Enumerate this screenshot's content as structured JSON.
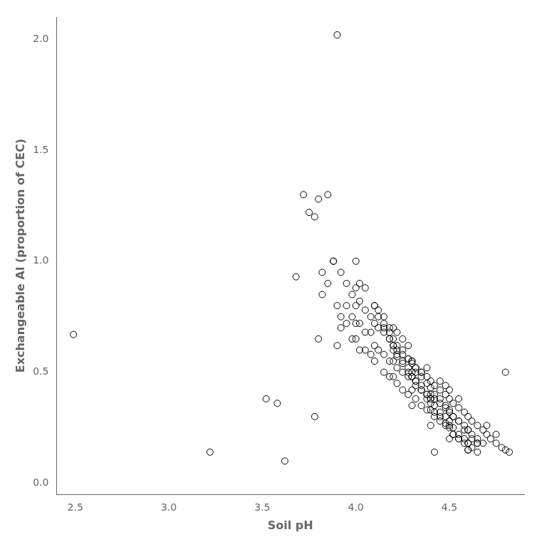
{
  "chart_data": {
    "type": "scatter",
    "x": [
      2.49,
      3.22,
      3.52,
      3.58,
      3.62,
      3.68,
      3.72,
      3.78,
      3.8,
      3.82,
      3.85,
      3.88,
      3.9,
      3.92,
      3.95,
      3.98,
      4.0,
      4.02,
      4.05,
      4.1,
      4.12,
      4.15,
      4.18,
      4.2,
      4.22,
      4.25,
      4.28,
      4.3,
      4.32,
      4.35,
      4.38,
      4.4,
      4.42,
      4.45,
      4.48,
      4.5,
      4.55,
      4.6,
      4.65,
      4.7,
      4.75,
      4.8,
      3.75,
      3.78,
      3.8,
      3.82,
      3.85,
      3.88,
      3.9,
      3.9,
      3.92,
      3.92,
      3.95,
      3.95,
      3.98,
      3.98,
      4.0,
      4.0,
      4.0,
      4.0,
      4.02,
      4.02,
      4.02,
      4.05,
      4.05,
      4.05,
      4.08,
      4.08,
      4.08,
      4.1,
      4.1,
      4.1,
      4.12,
      4.12,
      4.15,
      4.15,
      4.15,
      4.18,
      4.18,
      4.18,
      4.2,
      4.2,
      4.2,
      4.22,
      4.22,
      4.22,
      4.25,
      4.25,
      4.25,
      4.28,
      4.28,
      4.28,
      4.3,
      4.3,
      4.3,
      4.3,
      4.32,
      4.32,
      4.32,
      4.35,
      4.35,
      4.35,
      4.38,
      4.38,
      4.38,
      4.4,
      4.4,
      4.4,
      4.4,
      4.42,
      4.42,
      4.42,
      4.45,
      4.45,
      4.45,
      4.48,
      4.48,
      4.48,
      4.5,
      4.5,
      4.5,
      4.5,
      4.52,
      4.52,
      4.52,
      4.55,
      4.55,
      4.55,
      4.58,
      4.58,
      4.6,
      4.6,
      4.6,
      4.62,
      4.62,
      4.65,
      4.65,
      4.68,
      4.7,
      4.72,
      4.75,
      4.78,
      4.8,
      4.82,
      4.1,
      4.12,
      4.15,
      4.18,
      4.2,
      4.22,
      4.25,
      4.28,
      4.3,
      4.32,
      4.35,
      4.38,
      4.4,
      4.42,
      4.45,
      4.48,
      4.5,
      4.52,
      4.55,
      4.58,
      4.6,
      4.62,
      4.65,
      4.68,
      4.15,
      4.18,
      4.2,
      4.22,
      4.25,
      4.28,
      4.3,
      4.32,
      4.35,
      4.38,
      4.4,
      4.42,
      4.45,
      4.48,
      4.5,
      4.52,
      4.55,
      4.58,
      4.6,
      4.62,
      4.65,
      4.2,
      4.22,
      4.25,
      4.28,
      4.3,
      4.32,
      4.35,
      4.38,
      4.4,
      4.42,
      4.45,
      4.48,
      4.5,
      4.52,
      4.55,
      4.58,
      4.6
    ],
    "values": [
      0.67,
      0.14,
      0.38,
      0.36,
      0.1,
      0.93,
      1.3,
      0.3,
      0.65,
      0.95,
      0.9,
      1.0,
      2.02,
      0.95,
      0.9,
      0.85,
      1.0,
      0.9,
      0.88,
      0.8,
      0.78,
      0.75,
      0.7,
      0.7,
      0.68,
      0.65,
      0.62,
      0.55,
      0.52,
      0.5,
      0.52,
      0.38,
      0.14,
      0.46,
      0.44,
      0.42,
      0.38,
      0.15,
      0.18,
      0.26,
      0.22,
      0.5,
      1.22,
      1.2,
      1.28,
      0.85,
      1.3,
      1.0,
      0.62,
      0.8,
      0.75,
      0.7,
      0.8,
      0.72,
      0.75,
      0.65,
      0.88,
      0.8,
      0.72,
      0.65,
      0.82,
      0.72,
      0.6,
      0.78,
      0.68,
      0.6,
      0.75,
      0.68,
      0.58,
      0.72,
      0.62,
      0.55,
      0.7,
      0.6,
      0.68,
      0.58,
      0.5,
      0.65,
      0.55,
      0.48,
      0.62,
      0.55,
      0.48,
      0.6,
      0.52,
      0.45,
      0.58,
      0.5,
      0.42,
      0.56,
      0.48,
      0.4,
      0.55,
      0.48,
      0.42,
      0.35,
      0.52,
      0.46,
      0.38,
      0.5,
      0.42,
      0.35,
      0.48,
      0.4,
      0.33,
      0.46,
      0.4,
      0.33,
      0.26,
      0.44,
      0.38,
      0.3,
      0.42,
      0.36,
      0.28,
      0.4,
      0.34,
      0.26,
      0.38,
      0.32,
      0.26,
      0.2,
      0.36,
      0.3,
      0.22,
      0.34,
      0.28,
      0.2,
      0.32,
      0.24,
      0.3,
      0.24,
      0.18,
      0.28,
      0.2,
      0.26,
      0.18,
      0.24,
      0.22,
      0.2,
      0.18,
      0.16,
      0.15,
      0.14,
      0.8,
      0.75,
      0.72,
      0.68,
      0.65,
      0.62,
      0.6,
      0.56,
      0.54,
      0.5,
      0.48,
      0.45,
      0.43,
      0.4,
      0.38,
      0.35,
      0.33,
      0.3,
      0.28,
      0.26,
      0.24,
      0.22,
      0.2,
      0.18,
      0.7,
      0.65,
      0.62,
      0.58,
      0.55,
      0.52,
      0.5,
      0.46,
      0.44,
      0.4,
      0.38,
      0.35,
      0.32,
      0.3,
      0.28,
      0.25,
      0.22,
      0.2,
      0.18,
      0.16,
      0.14,
      0.6,
      0.57,
      0.54,
      0.5,
      0.48,
      0.44,
      0.42,
      0.38,
      0.36,
      0.32,
      0.3,
      0.27,
      0.25,
      0.22,
      0.2,
      0.18,
      0.15
    ],
    "xlim": [
      2.4,
      4.9
    ],
    "ylim": [
      -0.05,
      2.1
    ],
    "xticks": [
      2.5,
      {
        "value": 3.0,
        "label": "3.0"
      },
      3.5,
      {
        "value": 4.0,
        "label": "4.0"
      },
      4.5
    ],
    "yticks": [
      {
        "value": 0.0,
        "label": "0.0"
      },
      0.5,
      {
        "value": 1.0,
        "label": "1.0"
      },
      1.5,
      {
        "value": 2.0,
        "label": "2.0"
      }
    ],
    "xlabel": "Soil pH",
    "ylabel": "Exchangeable Al (proportion of CEC)",
    "color": "#000000",
    "marker": "circle",
    "grid": false
  }
}
